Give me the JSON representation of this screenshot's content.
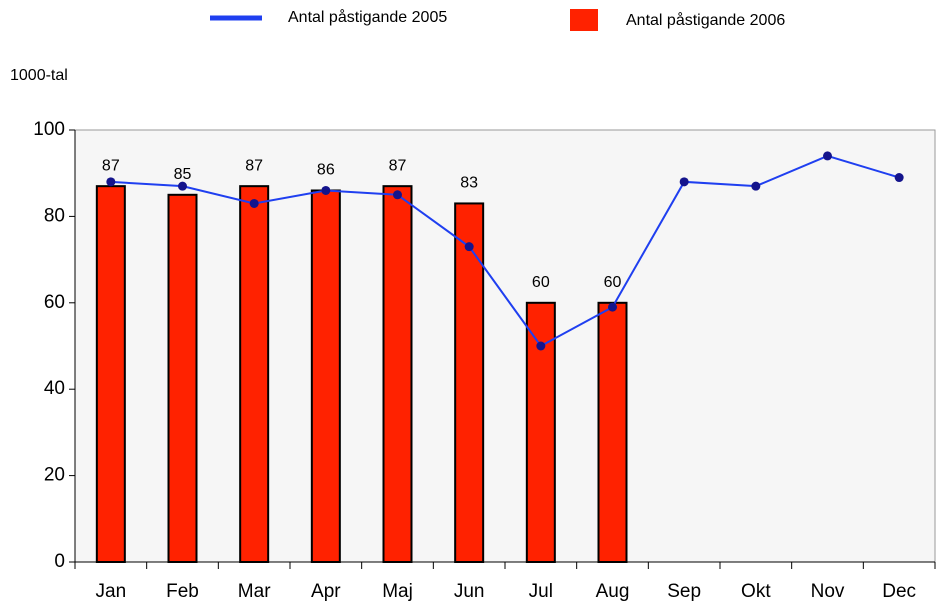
{
  "chart_data": {
    "type": "bar",
    "y_axis_label": "1000-tal",
    "categories": [
      "Jan",
      "Feb",
      "Mar",
      "Apr",
      "Maj",
      "Jun",
      "Jul",
      "Aug",
      "Sep",
      "Okt",
      "Nov",
      "Dec"
    ],
    "series": [
      {
        "name": "Antal påstigande 2005",
        "type": "line",
        "color": "#1f3ff0",
        "marker_color": "#14148c",
        "values": [
          88,
          87,
          83,
          86,
          85,
          73,
          50,
          59,
          88,
          87,
          94,
          89
        ]
      },
      {
        "name": "Antal påstigande 2006",
        "type": "bar",
        "color": "#ff2200",
        "values": [
          87,
          85,
          87,
          86,
          87,
          83,
          60,
          60,
          null,
          null,
          null,
          null
        ]
      }
    ],
    "ylim": [
      0,
      100
    ],
    "yticks": [
      0,
      20,
      40,
      60,
      80,
      100
    ],
    "legend": "top",
    "data_labels": [
      false,
      true
    ]
  }
}
